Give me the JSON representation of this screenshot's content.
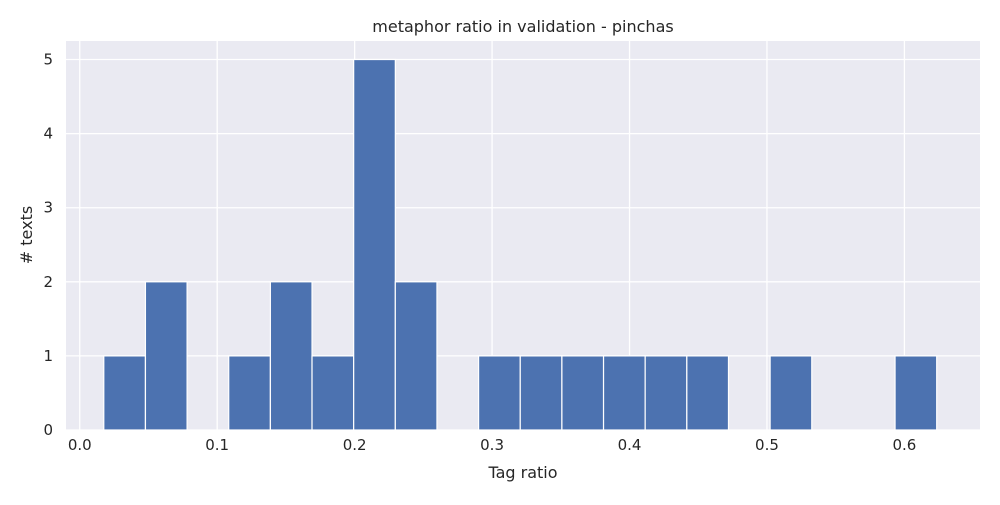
{
  "chart_data": {
    "type": "bar",
    "title": "metaphor ratio in validation - pinchas",
    "xlabel": "Tag ratio",
    "ylabel": "# texts",
    "xlim": [
      -0.01,
      0.655
    ],
    "ylim": [
      0,
      5.25
    ],
    "xticks": [
      0.0,
      0.1,
      0.2,
      0.3,
      0.4,
      0.5,
      0.6
    ],
    "xtick_labels": [
      "0.0",
      "0.1",
      "0.2",
      "0.3",
      "0.4",
      "0.5",
      "0.6"
    ],
    "yticks": [
      0,
      1,
      2,
      3,
      4,
      5
    ],
    "ytick_labels": [
      "0",
      "1",
      "2",
      "3",
      "4",
      "5"
    ],
    "grid": true,
    "color": "#4c72b0",
    "background": "#eaeaf2",
    "bin_start": 0.0175,
    "bin_width": 0.0303,
    "values": [
      1,
      2,
      0,
      1,
      2,
      1,
      5,
      2,
      0,
      1,
      1,
      1,
      1,
      1,
      1,
      0,
      1,
      0,
      0,
      1
    ]
  }
}
